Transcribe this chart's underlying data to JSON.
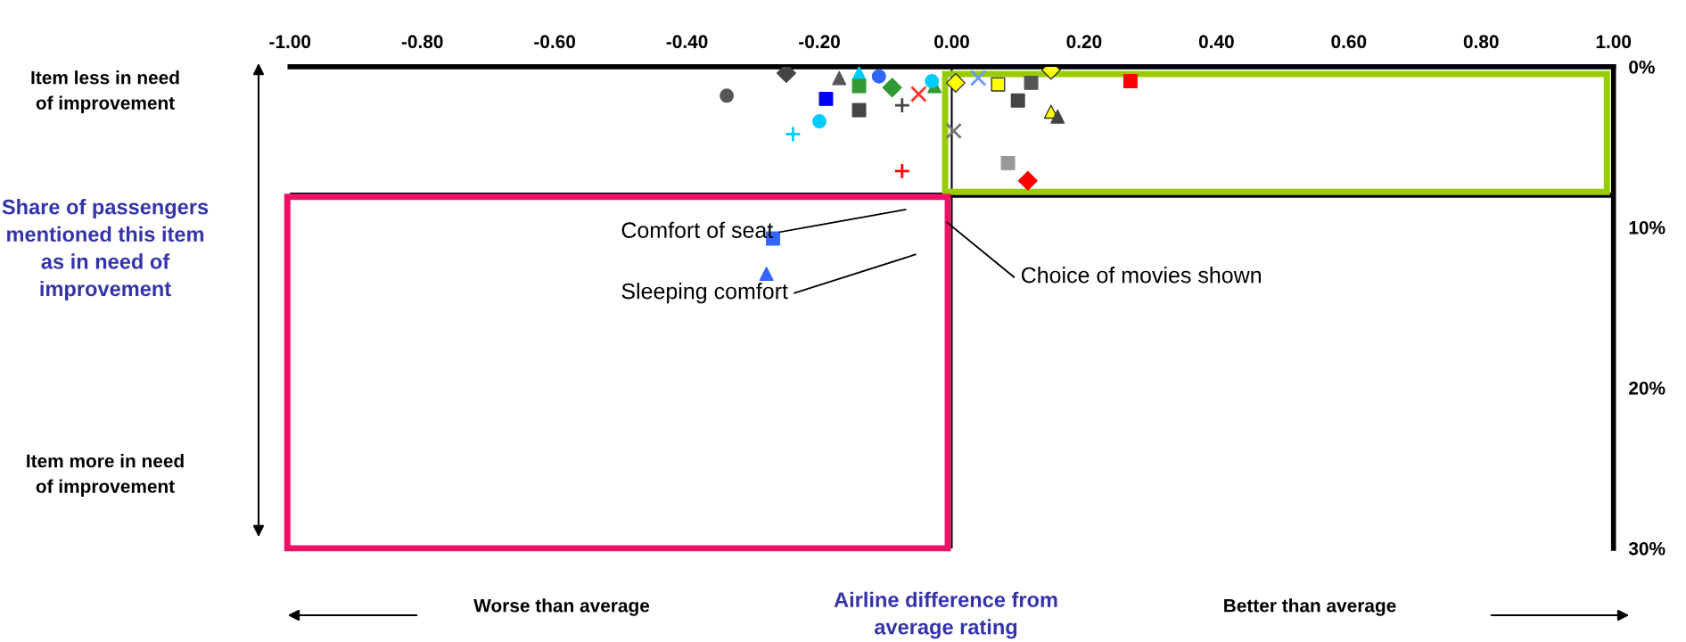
{
  "chart_data": {
    "type": "scatter",
    "xlabel": "Airline difference from\naverage rating",
    "ylabel": "Share of passengers\nmentioned this item\nas in need of\nimprovement",
    "xlim": [
      -1,
      1
    ],
    "ylim": [
      30,
      0
    ],
    "xticks": [
      {
        "value": -1,
        "label": "-1.00"
      },
      {
        "value": -0.8,
        "label": "-0.80"
      },
      {
        "value": -0.6,
        "label": "-0.60"
      },
      {
        "value": -0.4,
        "label": "-0.40"
      },
      {
        "value": -0.2,
        "label": "-0.20"
      },
      {
        "value": 0,
        "label": "0.00"
      },
      {
        "value": 0.2,
        "label": "0.20"
      },
      {
        "value": 0.4,
        "label": "0.40"
      },
      {
        "value": 0.6,
        "label": "0.60"
      },
      {
        "value": 0.8,
        "label": "0.80"
      },
      {
        "value": 1,
        "label": "1.00"
      }
    ],
    "yticks": [
      {
        "value": 0,
        "label": "0%"
      },
      {
        "value": 10,
        "label": "10%"
      },
      {
        "value": 20,
        "label": "20%"
      },
      {
        "value": 30,
        "label": "30%"
      }
    ],
    "grid": false,
    "ref_lines": [
      {
        "axis": "y",
        "value": 8,
        "label": null,
        "color": "#000000"
      },
      {
        "axis": "x",
        "value": 0,
        "label": null,
        "color": "#000000"
      }
    ],
    "annotations": [
      "Item less in need\nof improvement",
      "Item more in need\nof improvement",
      "Worse than average",
      "Better than average",
      "Comfort of seat",
      "Sleeping comfort",
      "Choice of movies shown"
    ],
    "series": [
      {
        "x": [
          -0.34
        ],
        "values": [
          1.8
        ],
        "color": "#555555",
        "marker": "circle"
      },
      {
        "x": [
          -0.25
        ],
        "values": [
          0.4
        ],
        "color": "#444444",
        "marker": "diamond"
      },
      {
        "x": [
          -0.17
        ],
        "values": [
          0.7
        ],
        "color": "#555555",
        "marker": "triangle"
      },
      {
        "x": [
          -0.14
        ],
        "values": [
          0.4
        ],
        "color": "#00ccff",
        "marker": "triangle"
      },
      {
        "x": [
          -0.14
        ],
        "values": [
          1.2
        ],
        "color": "#339933",
        "marker": "square"
      },
      {
        "x": [
          -0.19
        ],
        "values": [
          2.0
        ],
        "color": "#0000ff",
        "marker": "square"
      },
      {
        "x": [
          -0.14
        ],
        "values": [
          2.7
        ],
        "color": "#444444",
        "marker": "square"
      },
      {
        "x": [
          -0.11
        ],
        "values": [
          0.6
        ],
        "color": "#3366ff",
        "marker": "circle"
      },
      {
        "x": [
          -0.09
        ],
        "values": [
          1.3
        ],
        "color": "#339933",
        "marker": "diamond"
      },
      {
        "x": [
          -0.075
        ],
        "values": [
          2.4
        ],
        "color": "#444444",
        "marker": "cross"
      },
      {
        "x": [
          -0.05
        ],
        "values": [
          1.7
        ],
        "color": "#ff3333",
        "marker": "x"
      },
      {
        "x": [
          -0.026
        ],
        "values": [
          1.2
        ],
        "color": "#339933",
        "marker": "triangle"
      },
      {
        "x": [
          -0.03
        ],
        "values": [
          0.9
        ],
        "color": "#00ccff",
        "marker": "circle"
      },
      {
        "x": [
          -0.24
        ],
        "values": [
          4.2
        ],
        "color": "#00ccff",
        "marker": "cross"
      },
      {
        "x": [
          -0.2
        ],
        "values": [
          3.4
        ],
        "color": "#00ccff",
        "marker": "circle"
      },
      {
        "x": [
          -0.075
        ],
        "values": [
          6.5
        ],
        "color": "#ff0000",
        "marker": "cross"
      },
      {
        "x": [
          0.006
        ],
        "values": [
          1.0
        ],
        "color": "#ffff00",
        "marker": "diamond"
      },
      {
        "x": [
          0.003
        ],
        "values": [
          4.0
        ],
        "color": "#777777",
        "marker": "x"
      },
      {
        "x": [
          0.04
        ],
        "values": [
          0.7
        ],
        "color": "#6699ff",
        "marker": "x"
      },
      {
        "x": [
          0.07
        ],
        "values": [
          1.1
        ],
        "color": "#ffff00",
        "marker": "square"
      },
      {
        "x": [
          0.1
        ],
        "values": [
          2.1
        ],
        "color": "#444444",
        "marker": "square"
      },
      {
        "x": [
          0.12
        ],
        "values": [
          1.0
        ],
        "color": "#555555",
        "marker": "square"
      },
      {
        "x": [
          0.15
        ],
        "values": [
          0.2
        ],
        "color": "#ffff00",
        "marker": "diamond"
      },
      {
        "x": [
          0.15
        ],
        "values": [
          2.8
        ],
        "color": "#ffff00",
        "marker": "triangle"
      },
      {
        "x": [
          0.16
        ],
        "values": [
          3.1
        ],
        "color": "#444444",
        "marker": "triangle"
      },
      {
        "x": [
          0.27
        ],
        "values": [
          0.9
        ],
        "color": "#ff0000",
        "marker": "square"
      },
      {
        "x": [
          0.085
        ],
        "values": [
          6.0
        ],
        "color": "#999999",
        "marker": "square"
      },
      {
        "x": [
          0.115
        ],
        "values": [
          7.1
        ],
        "color": "#ff0000",
        "marker": "diamond"
      },
      {
        "x": [
          -0.27
        ],
        "values": [
          10.7
        ],
        "color": "#3366ff",
        "marker": "square"
      },
      {
        "x": [
          -0.28
        ],
        "values": [
          12.9
        ],
        "color": "#3366ff",
        "marker": "triangle"
      }
    ]
  }
}
